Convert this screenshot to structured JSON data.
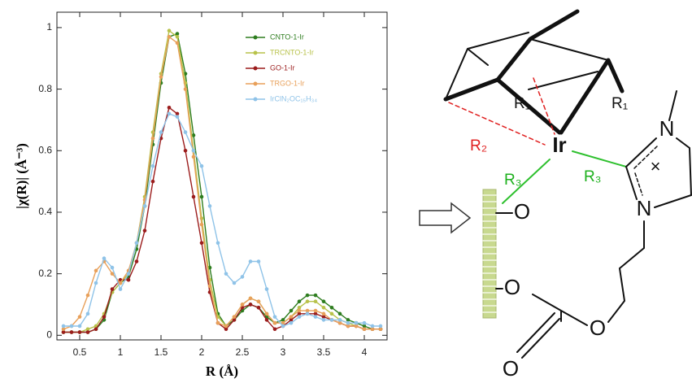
{
  "chart_data": {
    "type": "line",
    "xlabel": "R (Å)",
    "ylabel": "|χ(R)| (Å⁻³)",
    "xlim": [
      0.22,
      4.28
    ],
    "ylim": [
      -0.015,
      1.05
    ],
    "xticks": [
      0.5,
      1,
      1.5,
      2,
      2.5,
      3,
      3.5,
      4
    ],
    "yticks": [
      0,
      0.2,
      0.4,
      0.6,
      0.8,
      1
    ],
    "x": [
      0.3,
      0.4,
      0.5,
      0.6,
      0.7,
      0.8,
      0.9,
      1.0,
      1.1,
      1.2,
      1.3,
      1.4,
      1.5,
      1.6,
      1.7,
      1.8,
      1.9,
      2.0,
      2.1,
      2.2,
      2.3,
      2.4,
      2.5,
      2.6,
      2.7,
      2.8,
      2.9,
      3.0,
      3.1,
      3.2,
      3.3,
      3.4,
      3.5,
      3.6,
      3.7,
      3.8,
      3.9,
      4.0,
      4.1,
      4.2
    ],
    "series": [
      {
        "name": "CNTO-1-Ir",
        "color": "#2e7d1f",
        "values": [
          0.01,
          0.01,
          0.01,
          0.01,
          0.02,
          0.05,
          0.14,
          0.17,
          0.19,
          0.28,
          0.42,
          0.62,
          0.82,
          0.97,
          0.98,
          0.85,
          0.65,
          0.45,
          0.22,
          0.07,
          0.03,
          0.05,
          0.08,
          0.1,
          0.09,
          0.06,
          0.04,
          0.05,
          0.08,
          0.11,
          0.13,
          0.13,
          0.11,
          0.09,
          0.07,
          0.05,
          0.04,
          0.03,
          0.02,
          0.02
        ]
      },
      {
        "name": "TRCNTO-1-Ir",
        "color": "#b8c24a",
        "values": [
          0.01,
          0.01,
          0.01,
          0.02,
          0.03,
          0.07,
          0.14,
          0.17,
          0.2,
          0.3,
          0.45,
          0.66,
          0.85,
          0.99,
          0.97,
          0.82,
          0.6,
          0.38,
          0.18,
          0.06,
          0.03,
          0.06,
          0.1,
          0.12,
          0.11,
          0.07,
          0.04,
          0.04,
          0.06,
          0.09,
          0.11,
          0.11,
          0.09,
          0.07,
          0.05,
          0.04,
          0.03,
          0.02,
          0.02,
          0.02
        ]
      },
      {
        "name": "GO-1-Ir",
        "color": "#9b1c1c",
        "values": [
          0.01,
          0.01,
          0.01,
          0.01,
          0.02,
          0.06,
          0.15,
          0.18,
          0.18,
          0.24,
          0.34,
          0.5,
          0.64,
          0.74,
          0.72,
          0.6,
          0.45,
          0.3,
          0.14,
          0.04,
          0.02,
          0.05,
          0.09,
          0.1,
          0.09,
          0.05,
          0.02,
          0.03,
          0.05,
          0.07,
          0.07,
          0.07,
          0.06,
          0.05,
          0.04,
          0.03,
          0.03,
          0.02,
          0.02,
          0.02
        ]
      },
      {
        "name": "TRGO-1-Ir",
        "color": "#e8a05a",
        "values": [
          0.02,
          0.03,
          0.06,
          0.13,
          0.21,
          0.24,
          0.2,
          0.17,
          0.21,
          0.3,
          0.44,
          0.64,
          0.84,
          0.97,
          0.95,
          0.8,
          0.58,
          0.36,
          0.16,
          0.04,
          0.03,
          0.06,
          0.1,
          0.12,
          0.11,
          0.07,
          0.04,
          0.04,
          0.06,
          0.08,
          0.08,
          0.08,
          0.07,
          0.05,
          0.04,
          0.03,
          0.03,
          0.02,
          0.02,
          0.02
        ]
      },
      {
        "name": "IrClN₂OC₁₅H₃₄",
        "color": "#8fc3e8",
        "values": [
          0.03,
          0.03,
          0.03,
          0.07,
          0.17,
          0.25,
          0.22,
          0.15,
          0.2,
          0.3,
          0.42,
          0.55,
          0.66,
          0.72,
          0.71,
          0.66,
          0.6,
          0.55,
          0.42,
          0.3,
          0.2,
          0.17,
          0.19,
          0.24,
          0.24,
          0.15,
          0.06,
          0.03,
          0.04,
          0.06,
          0.07,
          0.06,
          0.05,
          0.05,
          0.05,
          0.04,
          0.04,
          0.04,
          0.03,
          0.03
        ]
      }
    ]
  },
  "diagram": {
    "r1_left": "R₁",
    "r1_right": "R₁",
    "r2": "R₂",
    "r3_left": "R₃",
    "r3_right": "R₃",
    "metal": "Ir",
    "n_top": "N",
    "n_bottom": "N",
    "charge": "×",
    "o_support_top": "O",
    "o_support_bottom": "O",
    "o_ester": "O",
    "o_carbonyl": "O"
  }
}
